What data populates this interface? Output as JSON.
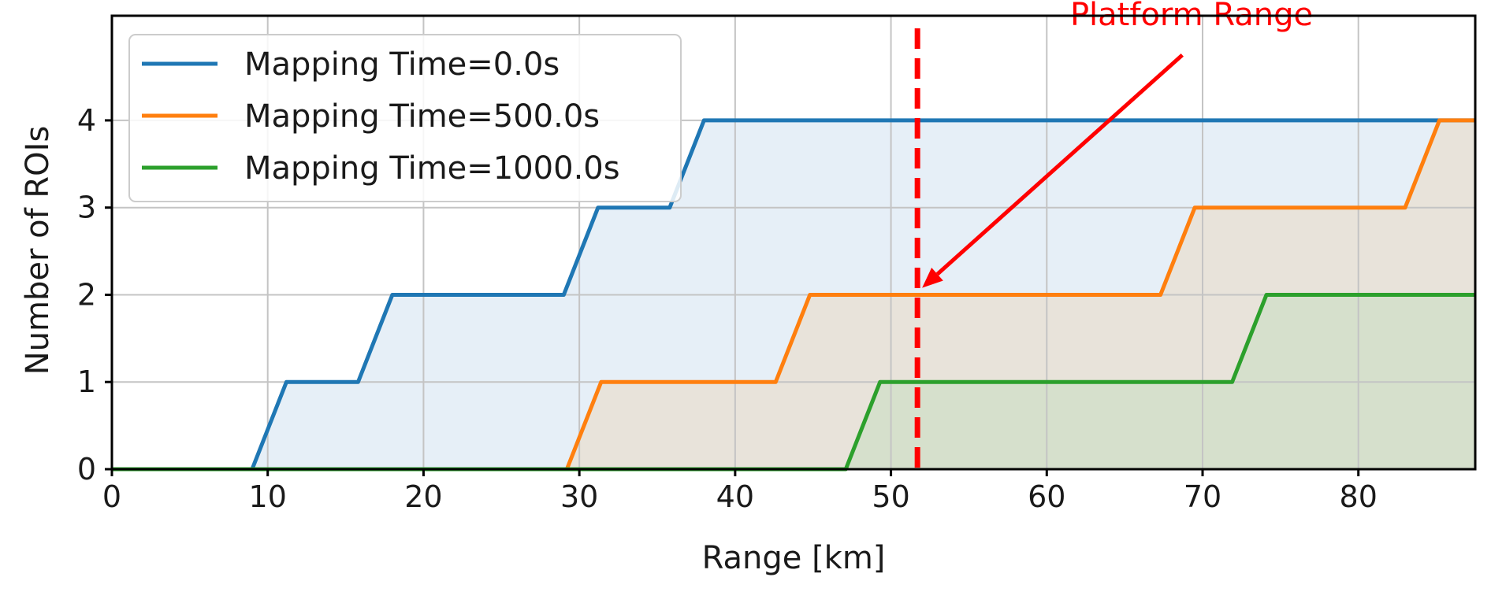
{
  "chart_data": {
    "type": "line",
    "title": "",
    "xlabel": "Range [km]",
    "ylabel": "Number of ROIs",
    "xlim": [
      0,
      87.5
    ],
    "ylim": [
      0,
      5.2
    ],
    "xticks": [
      0,
      10,
      20,
      30,
      40,
      50,
      60,
      70,
      80
    ],
    "yticks": [
      0,
      1,
      2,
      3,
      4
    ],
    "grid": true,
    "legend_position": "top-left",
    "series": [
      {
        "name": "Mapping Time=0.0s",
        "color": "#1f77b4",
        "fill_color": "#e6eff7",
        "x": [
          0,
          9.0,
          11.2,
          15.8,
          18.0,
          29.0,
          31.2,
          35.8,
          38.0,
          85.3,
          87.5
        ],
        "y": [
          0,
          0,
          1,
          1,
          2,
          2,
          3,
          3,
          4,
          4,
          4
        ]
      },
      {
        "name": "Mapping Time=500.0s",
        "color": "#ff7f0e",
        "fill_color": "#e8e3da",
        "x": [
          0,
          29.2,
          31.4,
          42.6,
          44.8,
          67.3,
          69.5,
          83.0,
          85.2,
          87.5
        ],
        "y": [
          0,
          0,
          1,
          1,
          2,
          2,
          3,
          3,
          4,
          4
        ]
      },
      {
        "name": "Mapping Time=1000.0s",
        "color": "#2ca02c",
        "fill_color": "#d6e0cc",
        "x": [
          0,
          47.1,
          49.3,
          71.9,
          74.1,
          87.5
        ],
        "y": [
          0,
          0,
          1,
          1,
          2,
          2
        ]
      }
    ],
    "vline": {
      "x": 51.7,
      "color": "#ff0000",
      "style": "dashed"
    },
    "annotation": {
      "text": "Platform Range",
      "color": "#ff0000",
      "text_x": 61.5,
      "text_y": 5.2,
      "arrow_from_x": 68.7,
      "arrow_from_y": 4.75,
      "arrow_to_x": 52.0,
      "arrow_to_y": 2.08
    }
  }
}
